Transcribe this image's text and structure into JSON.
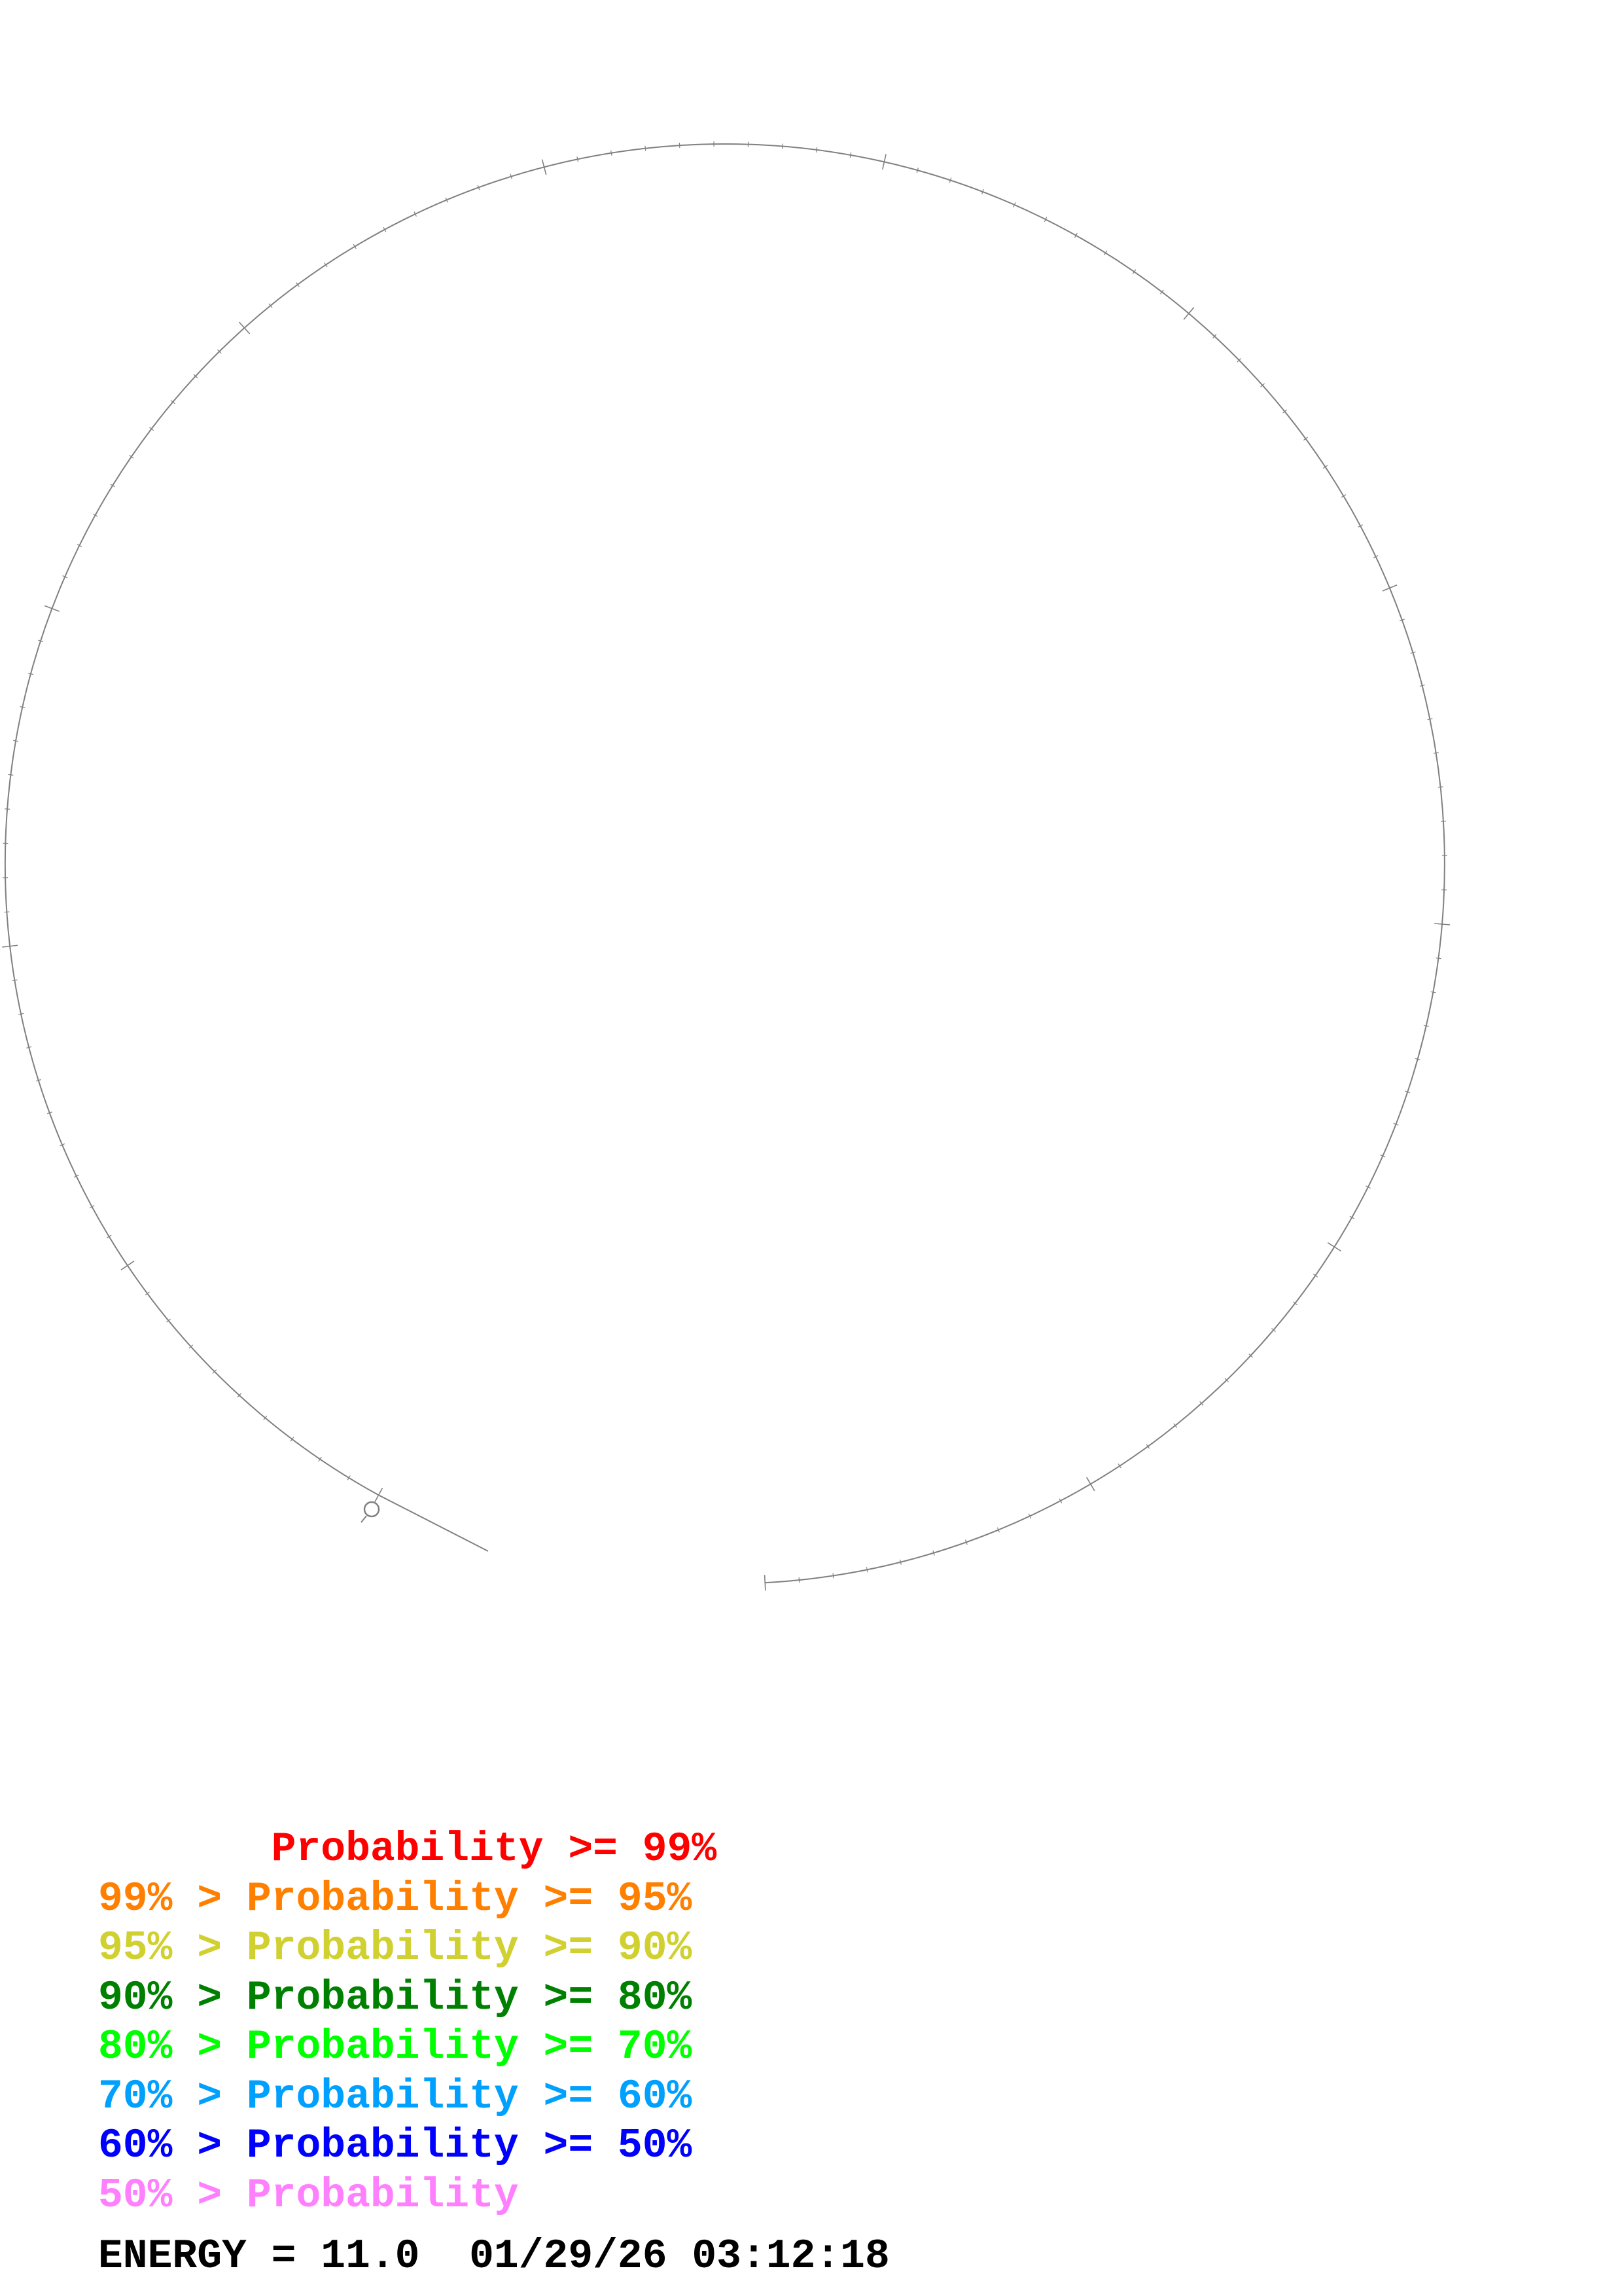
{
  "legend": {
    "rows": [
      {
        "prefix": "       ",
        "label": "Probability >= 99%",
        "color": "#ff0000"
      },
      {
        "prefix": "99% > ",
        "label": "Probability >= 95%",
        "color": "#ff8000"
      },
      {
        "prefix": "95% > ",
        "label": "Probability >= 90%",
        "color": "#d0d030"
      },
      {
        "prefix": "90% > ",
        "label": "Probability >= 80%",
        "color": "#008000"
      },
      {
        "prefix": "80% > ",
        "label": "Probability >= 70%",
        "color": "#00ff00"
      },
      {
        "prefix": "70% > ",
        "label": "Probability >= 60%",
        "color": "#00a0ff"
      },
      {
        "prefix": "60% > ",
        "label": "Probability >= 50%",
        "color": "#0000ff"
      },
      {
        "prefix": "50% > ",
        "label": "Probability",
        "color": "#ff80ff"
      }
    ]
  },
  "footer": {
    "energy_text": "ENERGY = 11.0  01/29/26 03:12:18"
  },
  "diagram": {
    "line_color": "#808080",
    "minor_tick_count": 120,
    "major_tick_every": 10,
    "start_marker": "circle"
  }
}
